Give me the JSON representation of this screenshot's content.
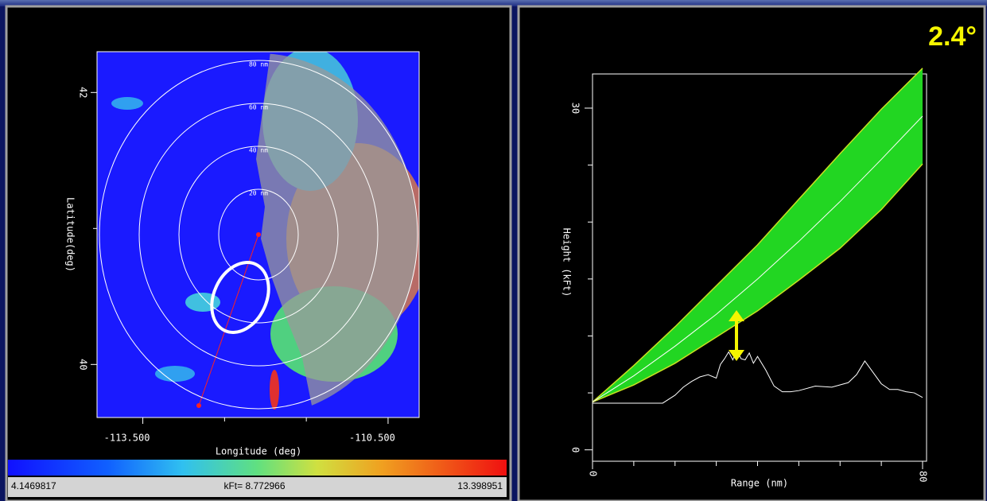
{
  "map_panel": {
    "rings": [
      "20 nm",
      "40 nm",
      "60 nm",
      "80 nm"
    ],
    "xlabel": "Longitude (deg)",
    "ylabel": "Latitude(deg)",
    "xlim": [
      -114.06,
      -110.12
    ],
    "ylim": [
      39.61,
      42.3
    ],
    "xticks": [
      {
        "value": -113.5,
        "label": "-113.500"
      },
      {
        "value": -110.5,
        "label": "-110.500"
      }
    ],
    "xminor": [
      -112.5,
      -111.5
    ],
    "yticks": [
      42,
      40
    ],
    "yminor": [
      41
    ],
    "colorbar": {
      "min_label": "4.1469817",
      "mid_label": "kFt= 8.772966",
      "max_label": "13.398951"
    }
  },
  "profile_panel": {
    "annotation": "2.4°",
    "xlabel": "Range (nm)",
    "ylabel": "Height (kFt)",
    "xlim": [
      0,
      80
    ],
    "ylim": [
      -1,
      33
    ],
    "xticks": [
      0,
      80
    ],
    "xminor": [
      10,
      20,
      30,
      40,
      50,
      60,
      70
    ],
    "yticks": [
      0,
      30
    ],
    "yminor": [
      5,
      10,
      15,
      20,
      25
    ],
    "x": [
      0,
      10,
      20,
      30,
      40,
      50,
      60,
      70,
      80
    ],
    "beam_upper": [
      4.2,
      7.4,
      10.8,
      14.4,
      18.0,
      22.0,
      26.0,
      29.9,
      33.5
    ],
    "beam_center": [
      4.2,
      6.5,
      9.1,
      11.9,
      15.0,
      18.3,
      21.8,
      25.5,
      29.3
    ],
    "beam_lower": [
      4.2,
      5.7,
      7.6,
      9.9,
      12.2,
      14.9,
      17.7,
      21.1,
      25.1
    ],
    "terrain_x": [
      0,
      17,
      20,
      22,
      24,
      26,
      28,
      30,
      31,
      32,
      33,
      34,
      35,
      36,
      37,
      38,
      39,
      40,
      42,
      44,
      46,
      48,
      50,
      54,
      58,
      62,
      64,
      66,
      68,
      70,
      72,
      74,
      76,
      78,
      80
    ],
    "terrain": [
      4.1,
      4.1,
      4.8,
      5.5,
      6.0,
      6.4,
      6.6,
      6.3,
      7.5,
      8.0,
      8.6,
      7.9,
      8.8,
      8.0,
      7.9,
      8.5,
      7.6,
      8.2,
      7.0,
      5.6,
      5.1,
      5.1,
      5.2,
      5.6,
      5.5,
      5.9,
      6.6,
      7.8,
      6.8,
      5.8,
      5.3,
      5.3,
      5.1,
      5.0,
      4.6
    ]
  }
}
